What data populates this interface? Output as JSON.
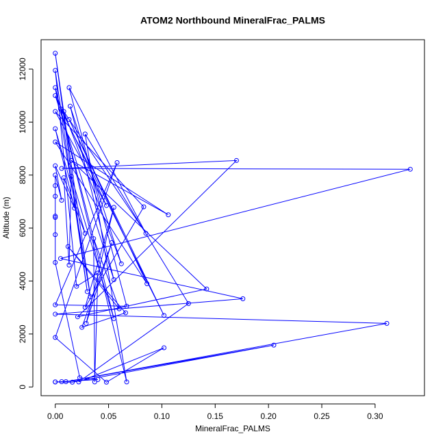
{
  "chart_data": {
    "type": "line",
    "markers": true,
    "title": "ATOM2 Northbound MineralFrac_PALMS",
    "x_label": "MineralFrac_PALMS",
    "y_label": "Altitude (m)",
    "color": "#0000ff",
    "xlim": [
      -0.0133,
      0.3463
    ],
    "ylim": [
      -330,
      13110
    ],
    "xticks": [
      {
        "value": 0,
        "label": "0.00"
      },
      0.05,
      {
        "value": 0.1,
        "label": "0.10"
      },
      0.15,
      {
        "value": 0.2,
        "label": "0.20"
      },
      0.25,
      {
        "value": 0.3,
        "label": "0.30"
      }
    ],
    "yticks": [
      0,
      2000,
      4000,
      6000,
      8000,
      10000,
      12000
    ],
    "x": [
      0,
      0.016,
      0.205,
      0.01,
      0.311,
      0,
      0.176,
      0.005,
      0.333,
      0.006,
      0.17,
      0.021,
      0.142,
      0.015,
      0.106,
      0,
      0.086,
      0.013,
      0.102,
      0.005,
      0.067,
      0.028,
      0.125,
      0.022,
      0.102,
      0.048,
      0,
      0.058,
      0,
      0.067,
      0.013,
      0.085,
      0.008,
      0.062,
      0.014,
      0.055,
      0,
      0.048,
      0,
      0.083,
      0.028,
      0.055,
      0.029,
      0.053,
      0.025,
      0.066,
      0.012,
      0.06,
      0.036,
      0.037,
      0.04,
      0.02,
      0,
      0.03,
      0,
      0.033,
      0,
      0.055,
      0.015,
      0.013,
      0.008,
      0.028,
      0,
      0.018,
      0,
      0.006,
      0,
      0,
      0,
      0,
      0,
      0,
      0,
      0.023,
      0.04,
      0.006,
      0
    ],
    "values": [
      190,
      180,
      1580,
      200,
      2400,
      2750,
      3330,
      4850,
      8220,
      8250,
      8550,
      2650,
      3700,
      8550,
      6500,
      9250,
      3900,
      10100,
      2700,
      10500,
      190,
      9550,
      3150,
      190,
      1480,
      180,
      1870,
      8470,
      3100,
      3050,
      11300,
      5800,
      10400,
      4650,
      10600,
      4050,
      11000,
      6850,
      10400,
      6800,
      3000,
      6780,
      2400,
      5450,
      2250,
      2800,
      5300,
      2950,
      5600,
      190,
      4300,
      3800,
      11950,
      3600,
      12600,
      3400,
      11300,
      2580,
      7950,
      4600,
      7900,
      5800,
      9750,
      6750,
      8350,
      7050,
      8000,
      7600,
      7200,
      6450,
      6400,
      5750,
      4700,
      350,
      280,
      200,
      190
    ]
  }
}
